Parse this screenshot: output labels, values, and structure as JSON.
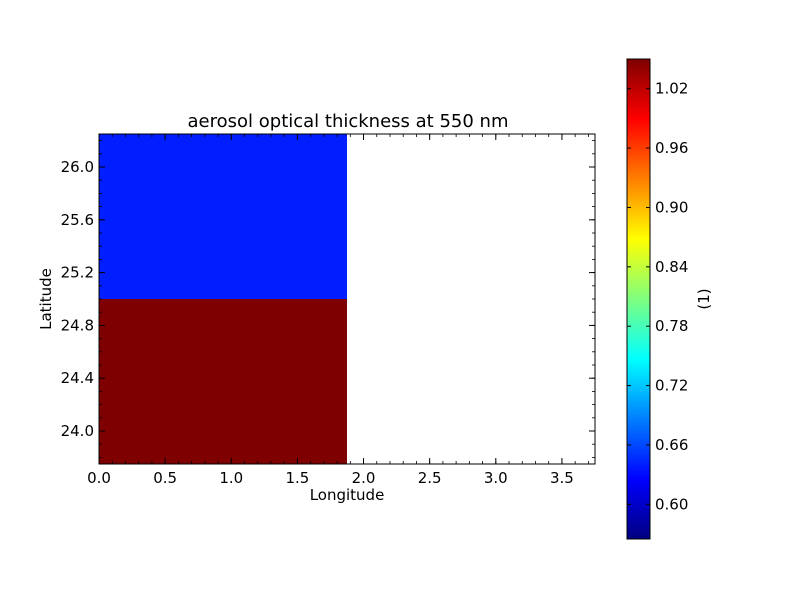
{
  "chart_data": {
    "type": "heatmap",
    "title": "aerosol optical thickness at 550 nm",
    "xlabel": "Longitude",
    "ylabel": "Latitude",
    "xlim": [
      0.0,
      3.75
    ],
    "ylim": [
      23.75,
      26.25
    ],
    "x_ticks": [
      0.0,
      0.5,
      1.0,
      1.5,
      2.0,
      2.5,
      3.0,
      3.5
    ],
    "x_tick_labels": [
      "0.0",
      "0.5",
      "1.0",
      "1.5",
      "2.0",
      "2.5",
      "3.0",
      "3.5"
    ],
    "y_ticks": [
      24.0,
      24.4,
      24.8,
      25.2,
      25.6,
      26.0
    ],
    "y_tick_labels": [
      "24.0",
      "24.4",
      "24.8",
      "25.2",
      "25.6",
      "26.0"
    ],
    "cells": [
      {
        "x0": 0.0,
        "x1": 1.875,
        "y0": 25.0,
        "y1": 26.25,
        "value": 0.64
      },
      {
        "x0": 0.0,
        "x1": 1.875,
        "y0": 23.75,
        "y1": 25.0,
        "value": 1.05
      }
    ],
    "colorbar": {
      "label": "(1)",
      "range": [
        0.565,
        1.05
      ],
      "ticks": [
        0.6,
        0.66,
        0.72,
        0.78,
        0.84,
        0.9,
        0.96,
        1.02
      ],
      "tick_labels": [
        "0.60",
        "0.66",
        "0.72",
        "0.78",
        "0.84",
        "0.90",
        "0.96",
        "1.02"
      ],
      "colormap": "jet"
    },
    "grid": false,
    "colors": {
      "jet_stops": [
        "#00007f",
        "#0000ff",
        "#007fff",
        "#00ffff",
        "#7fff7f",
        "#ffff00",
        "#ff7f00",
        "#ff0000",
        "#7f0000"
      ]
    }
  }
}
